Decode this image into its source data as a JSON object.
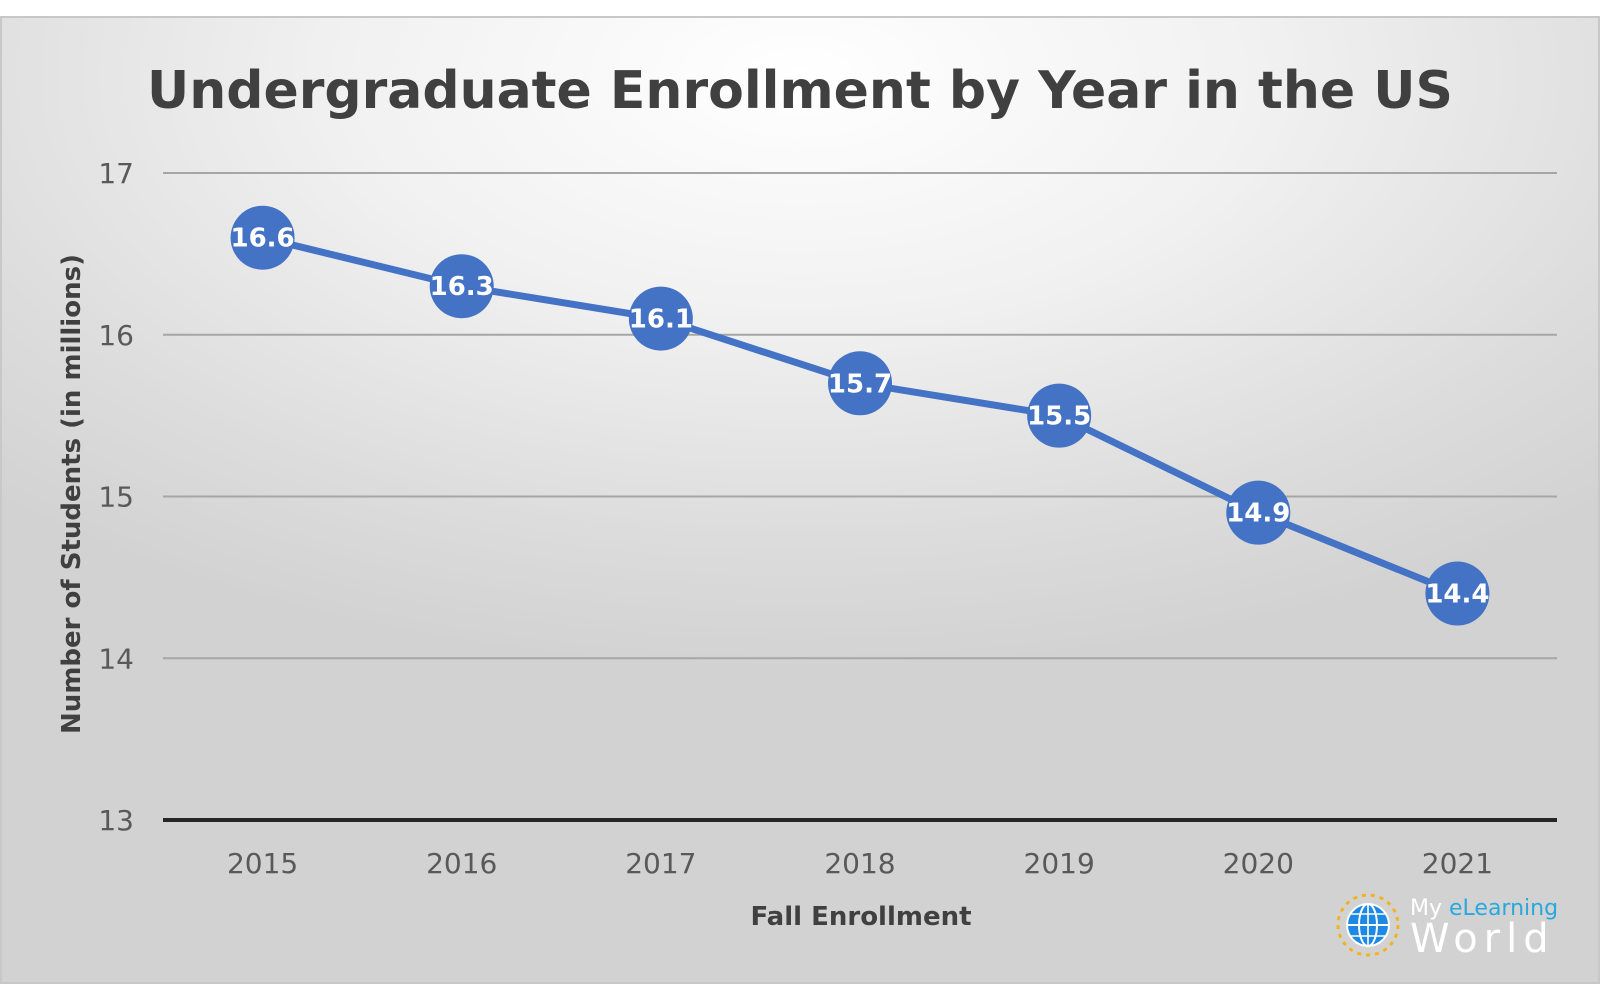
{
  "chart_data": {
    "type": "line",
    "title": "Undergraduate Enrollment by Year in the US",
    "xlabel": "Fall Enrollment",
    "ylabel": "Number of Students (in millions)",
    "categories": [
      "2015",
      "2016",
      "2017",
      "2018",
      "2019",
      "2020",
      "2021"
    ],
    "series": [
      {
        "values": [
          16.6,
          16.3,
          16.1,
          15.7,
          15.5,
          14.9,
          14.4
        ],
        "data_labels": [
          "16.6",
          "16.3",
          "16.1",
          "15.7",
          "15.5",
          "14.9",
          "14.4"
        ]
      }
    ],
    "ylim": [
      13,
      17
    ],
    "yticks": [
      13,
      14,
      15,
      16,
      17
    ],
    "ytick_labels": [
      "13",
      "14",
      "15",
      "16",
      "17"
    ],
    "grid": true,
    "legend": "none",
    "colors": {
      "line": "#4472C4",
      "marker": "#4472C4",
      "gridline": "#a6a6a6",
      "baseline": "#262626"
    }
  },
  "logo": {
    "line1_prefix": "My ",
    "line1_accent": "eLearning",
    "line2": "World",
    "accent_color": "#29a8e0",
    "ring_color": "#f0b323",
    "globe_color": "#1e88e5",
    "icon": "globe-icon"
  }
}
